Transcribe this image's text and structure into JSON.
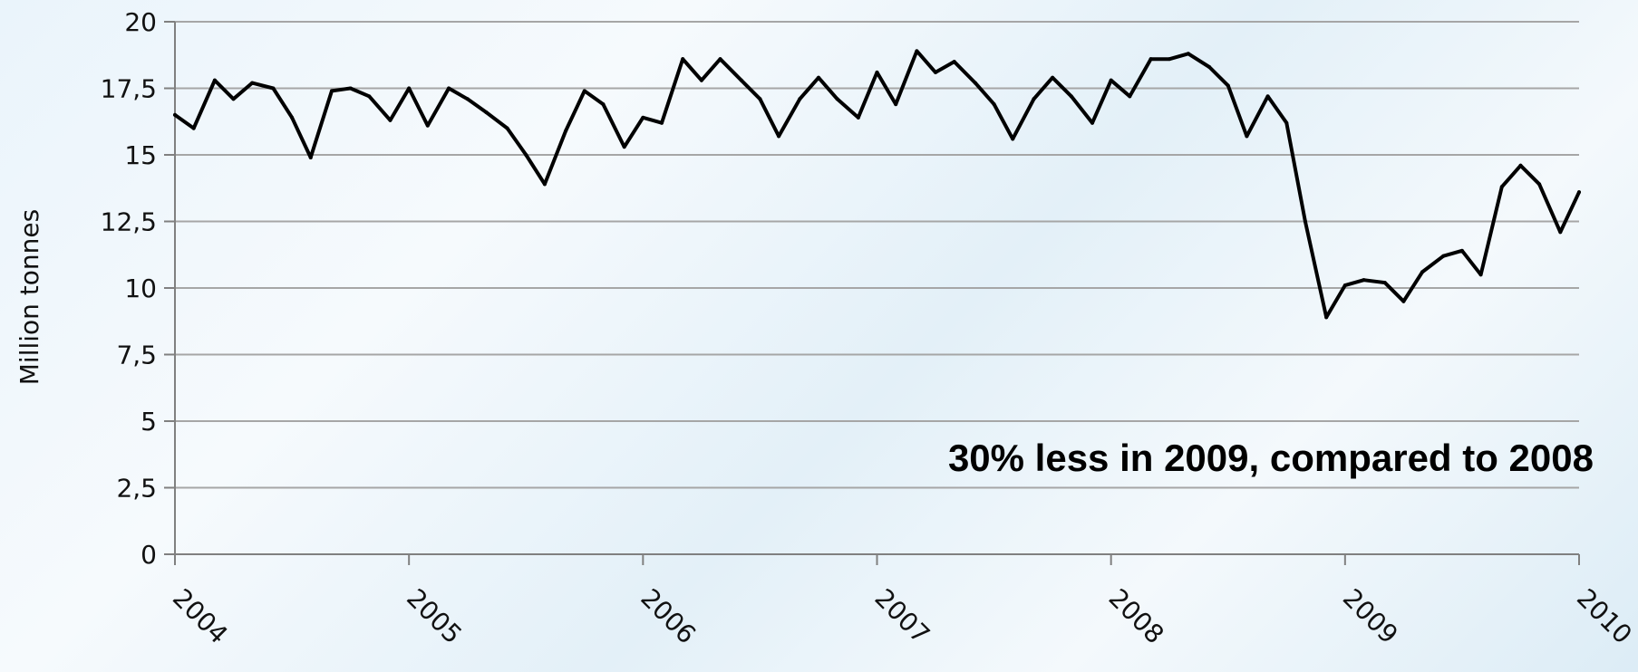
{
  "chart_data": {
    "type": "line",
    "title": "",
    "xlabel": "",
    "ylabel": "Million tonnes",
    "ylim": [
      0,
      20
    ],
    "y_ticks": [
      "0",
      "2,5",
      "5",
      "7,5",
      "10",
      "12,5",
      "15",
      "17,5",
      "20"
    ],
    "y_tick_values": [
      0,
      2.5,
      5,
      7.5,
      10,
      12.5,
      15,
      17.5,
      20
    ],
    "x_ticks": [
      "2004",
      "2005",
      "2006",
      "2007",
      "2008",
      "2009",
      "2010"
    ],
    "xlim": [
      2004.0,
      2010.0
    ],
    "grid": true,
    "legend": "none",
    "annotation": "30% less in 2009, compared to 2008",
    "colors": {
      "line": "#000000",
      "grid": "#a6a6a6",
      "axis": "#808080"
    },
    "series": [
      {
        "x": [
          2004.0,
          2004.08,
          2004.17,
          2004.25,
          2004.33,
          2004.42,
          2004.5,
          2004.58,
          2004.67,
          2004.75,
          2004.83,
          2004.92,
          2005.0,
          2005.08,
          2005.17,
          2005.25,
          2005.33,
          2005.42,
          2005.5,
          2005.58,
          2005.67,
          2005.75,
          2005.83,
          2005.92,
          2006.0,
          2006.08,
          2006.17,
          2006.25,
          2006.33,
          2006.42,
          2006.5,
          2006.58,
          2006.67,
          2006.75,
          2006.83,
          2006.92,
          2007.0,
          2007.08,
          2007.17,
          2007.25,
          2007.33,
          2007.42,
          2007.5,
          2007.58,
          2007.67,
          2007.75,
          2007.83,
          2007.92,
          2008.0,
          2008.08,
          2008.17,
          2008.25,
          2008.33,
          2008.42,
          2008.5,
          2008.58,
          2008.67,
          2008.75,
          2008.83,
          2008.92,
          2009.0,
          2009.08,
          2009.17,
          2009.25,
          2009.33,
          2009.42,
          2009.5,
          2009.58,
          2009.67,
          2009.75,
          2009.83,
          2009.92,
          2010.0
        ],
        "values": [
          16.5,
          16.0,
          17.8,
          17.1,
          17.7,
          17.5,
          16.4,
          14.9,
          17.4,
          17.5,
          17.2,
          16.3,
          17.5,
          16.1,
          17.5,
          17.1,
          16.6,
          16.0,
          15.0,
          13.9,
          15.9,
          17.4,
          16.9,
          15.3,
          16.4,
          16.2,
          18.6,
          17.8,
          18.6,
          17.8,
          17.1,
          15.7,
          17.1,
          17.9,
          17.1,
          16.4,
          18.1,
          16.9,
          18.9,
          18.1,
          18.5,
          17.7,
          16.9,
          15.6,
          17.1,
          17.9,
          17.2,
          16.2,
          17.8,
          17.2,
          18.6,
          18.6,
          18.8,
          18.3,
          17.6,
          15.7,
          17.2,
          16.2,
          12.5,
          8.9,
          10.1,
          10.3,
          10.2,
          9.5,
          10.6,
          11.2,
          11.4,
          10.5,
          13.8,
          14.6,
          13.9,
          12.1,
          13.6
        ]
      }
    ]
  }
}
